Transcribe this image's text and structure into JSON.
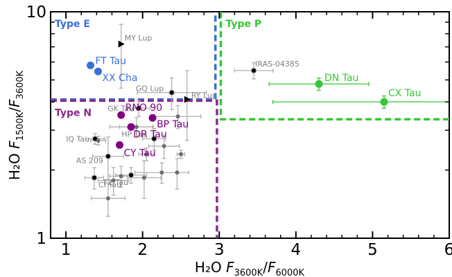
{
  "chart_data": {
    "type": "scatter",
    "xlabel": {
      "prefix": "H₂O ",
      "F1": "F",
      "sub1": "3600K",
      "slash": "/",
      "F2": "F",
      "sub2": "6000K"
    },
    "ylabel": {
      "prefix": "H₂O ",
      "F1": "F",
      "sub1": "1500K",
      "slash": "/",
      "F2": "F",
      "sub2": "3600K"
    },
    "xlim": [
      0.8,
      6.0
    ],
    "ylim": [
      1,
      10
    ],
    "yscale": "log",
    "xticks": [
      1,
      2,
      3,
      4,
      5,
      6
    ],
    "xtick_labels": [
      "1",
      "2",
      "3",
      "4",
      "5",
      "6"
    ],
    "yticks": [
      1,
      10
    ],
    "ytick_labels": [
      "1",
      "10"
    ],
    "grid": false,
    "regions": [
      {
        "name": "Type E",
        "color": "#3a6fd8",
        "boundary": {
          "x_max": 2.95,
          "y_min": 4.1
        }
      },
      {
        "name": "Type P",
        "color": "#35c735",
        "boundary": {
          "x_min": 3.02,
          "y_min": 3.35
        }
      },
      {
        "name": "Type N",
        "color": "#8a2a8a",
        "boundary": {
          "x_max": 2.97,
          "y_max": 4.05
        }
      }
    ],
    "colors": {
      "typeE": "#3a6fd8",
      "typeP": "#35c735",
      "typeN": "#800080",
      "other": "#808080"
    },
    "points": [
      {
        "label": "FT Tau",
        "x": 1.32,
        "y": 5.8,
        "group": "E"
      },
      {
        "label": "XX Cha",
        "x": 1.42,
        "y": 5.45,
        "group": "E"
      },
      {
        "label": "DN Tau",
        "x": 4.3,
        "y": 4.8,
        "xerr": [
          0.65,
          0.65
        ],
        "yerr": [
          0.3,
          0.3
        ],
        "group": "P"
      },
      {
        "label": "CX Tau",
        "x": 5.15,
        "y": 4.0,
        "xerr": [
          1.45,
          0.85
        ],
        "yerr": [
          0.25,
          0.25
        ],
        "group": "P"
      },
      {
        "label": "RNO 90",
        "x": 1.72,
        "y": 3.5,
        "group": "N"
      },
      {
        "label": "BP Tau",
        "x": 2.13,
        "y": 3.4,
        "group": "N"
      },
      {
        "label": "DR Tau",
        "x": 1.85,
        "y": 3.1,
        "xerr": [
          0.28,
          0.28
        ],
        "group": "N"
      },
      {
        "label": "CY Tau",
        "x": 1.7,
        "y": 2.58,
        "group": "N"
      },
      {
        "label": "MY Lup",
        "x": 1.72,
        "y": 7.2,
        "yerr": [
          2.6,
          1.6
        ],
        "group": "other",
        "marker": "triangle"
      },
      {
        "label": "IRAS-04385",
        "x": 3.45,
        "y": 5.5,
        "xerr": [
          0.25,
          0.25
        ],
        "yerr": [
          0.45,
          0.45
        ],
        "group": "other"
      },
      {
        "label": "GQ Lup",
        "x": 2.38,
        "y": 4.4,
        "xerr": [
          0.45,
          0.45
        ],
        "yerr": [
          0.7,
          0.7
        ],
        "group": "other"
      },
      {
        "label": "RY Lup",
        "x": 2.58,
        "y": 4.1,
        "yerr": [
          1.4,
          1.4
        ],
        "group": "other",
        "marker": "triangle"
      },
      {
        "label": "GK Tau",
        "x": 1.95,
        "y": 3.75,
        "xerr": [
          0.15,
          0.15
        ],
        "yerr": [
          0.3,
          0.3
        ],
        "group": "other"
      },
      {
        "label": "HP Tau",
        "x": 2.15,
        "y": 2.75,
        "xerr": [
          0.15,
          0.15
        ],
        "yerr": [
          0.3,
          0.3
        ],
        "group": "other"
      },
      {
        "label": "IQ Tau",
        "x": 1.38,
        "y": 2.75,
        "xerr": [
          0.12,
          0.12
        ],
        "yerr": [
          0.15,
          0.15
        ],
        "group": "other"
      },
      {
        "label": "AS 209",
        "x": 1.55,
        "y": 2.3,
        "xerr": [
          0.2,
          0.2
        ],
        "yerr": [
          0.5,
          0.5
        ],
        "group": "other"
      },
      {
        "label": "FZ Tau",
        "x": 1.85,
        "y": 1.9,
        "xerr": [
          0.2,
          0.2
        ],
        "yerr": [
          0.15,
          0.15
        ],
        "group": "other"
      },
      {
        "label": "CI Tau",
        "x": 1.37,
        "y": 1.85,
        "xerr": [
          0.12,
          0.12
        ],
        "yerr": [
          0.2,
          0.2
        ],
        "group": "other"
      },
      {
        "label": "",
        "x": 1.42,
        "y": 2.7,
        "xerr": [
          0.1,
          0.1
        ],
        "yerr": [
          0.12,
          0.12
        ],
        "group": "other"
      },
      {
        "label": "",
        "x": 1.92,
        "y": 3.1,
        "xerr": [
          0.22,
          0.22
        ],
        "yerr": [
          0.3,
          0.3
        ],
        "group": "other"
      },
      {
        "label": "",
        "x": 2.28,
        "y": 2.55,
        "xerr": [
          0.2,
          0.2
        ],
        "yerr": [
          0.3,
          0.3
        ],
        "group": "other"
      },
      {
        "label": "",
        "x": 2.05,
        "y": 2.35,
        "xerr": [
          0.1,
          0.1
        ],
        "yerr": [
          0.15,
          0.15
        ],
        "group": "other"
      },
      {
        "label": "",
        "x": 2.5,
        "y": 2.35,
        "xerr": [
          0.05,
          0.05
        ],
        "yerr": [
          0.1,
          0.1
        ],
        "group": "other"
      },
      {
        "label": "",
        "x": 2.46,
        "y": 3.45,
        "xerr": [
          0.3,
          0.3
        ],
        "yerr": [
          0.4,
          0.4
        ],
        "group": "other"
      },
      {
        "label": "",
        "x": 2.02,
        "y": 1.85,
        "xerr": [
          0.22,
          0.22
        ],
        "yerr": [
          0.35,
          0.35
        ],
        "group": "other"
      },
      {
        "label": "",
        "x": 2.25,
        "y": 1.95,
        "xerr": [
          0.35,
          0.35
        ],
        "yerr": [
          0.2,
          0.2
        ],
        "group": "other"
      },
      {
        "label": "",
        "x": 2.45,
        "y": 1.95,
        "yerr": [
          0.3,
          0.3
        ],
        "group": "other"
      },
      {
        "label": "",
        "x": 1.72,
        "y": 1.88,
        "xerr": [
          0.15,
          0.15
        ],
        "yerr": [
          0.2,
          0.2
        ],
        "group": "other"
      },
      {
        "label": "",
        "x": 1.55,
        "y": 1.5,
        "xerr": [
          0.22,
          0.22
        ],
        "yerr": [
          0.25,
          0.25
        ],
        "group": "other"
      },
      {
        "label": "",
        "x": 1.62,
        "y": 1.8,
        "xerr": [
          0.2,
          0.2
        ],
        "yerr": [
          0.25,
          0.25
        ],
        "group": "other"
      }
    ]
  }
}
